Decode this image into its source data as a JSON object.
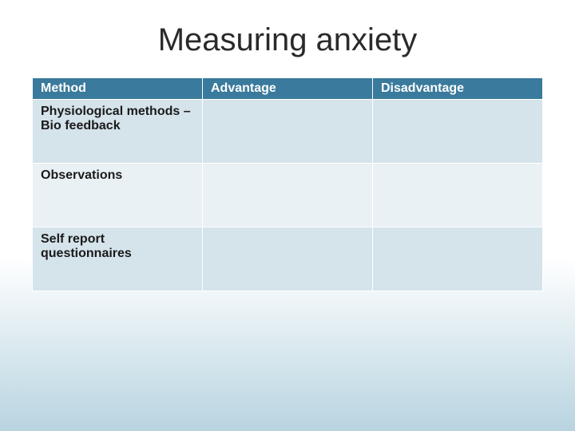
{
  "title": "Measuring anxiety",
  "title_fontsize": 40,
  "title_color": "#2a2a2a",
  "background_gradient": {
    "top": "#ffffff",
    "bottom": "#b8d4e0"
  },
  "table": {
    "header_bg": "#3a7a9c",
    "header_text_color": "#ffffff",
    "row_odd_bg": "#d5e3eb",
    "row_even_bg": "#eaf1f5",
    "border_color": "#ffffff",
    "header_fontsize": 16,
    "cell_fontsize": 16,
    "columns": [
      "Method",
      "Advantage",
      "Disadvantage"
    ],
    "rows": [
      {
        "method": "Physiological methods – Bio feedback",
        "advantage": "",
        "disadvantage": ""
      },
      {
        "method": "Observations",
        "advantage": "",
        "disadvantage": ""
      },
      {
        "method": "Self report questionnaires",
        "advantage": "",
        "disadvantage": ""
      }
    ]
  }
}
